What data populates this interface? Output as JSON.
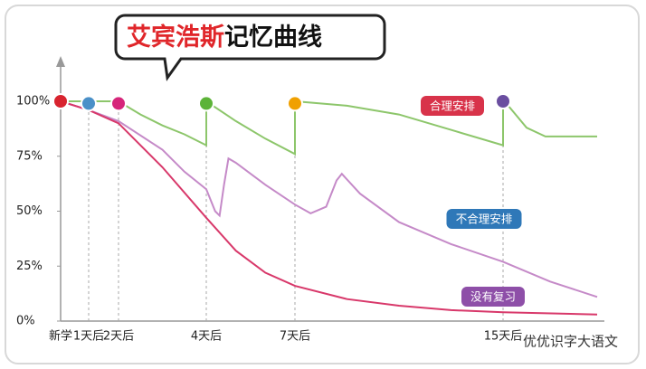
{
  "chart_data": {
    "type": "line",
    "title_part1": "艾宾浩斯",
    "title_part2": "记忆曲线",
    "xlim": [
      0,
      19
    ],
    "xticks": [
      {
        "value": 0,
        "label": "新学"
      },
      {
        "value": 1,
        "label": "1天后"
      },
      {
        "value": 2,
        "label": "2天后"
      },
      {
        "value": 4,
        "label": "4天后"
      },
      {
        "value": 7,
        "label": "7天后"
      },
      {
        "value": 15,
        "label": "15天后"
      }
    ],
    "ylim": [
      0,
      100
    ],
    "yticks": [
      {
        "value": 0,
        "label": "0%"
      },
      {
        "value": 25,
        "label": "25%"
      },
      {
        "value": 50,
        "label": "50%"
      },
      {
        "value": 75,
        "label": "75%"
      },
      {
        "value": 100,
        "label": "100%"
      }
    ],
    "series": [
      {
        "name": "合理安排",
        "color": "#8dc66b",
        "label_color": "#d8334a",
        "x": [
          0,
          1,
          2,
          2.5,
          3,
          3.5,
          4,
          4,
          5,
          6,
          7,
          7,
          9,
          11,
          13,
          15,
          15,
          15.3,
          16,
          16.8,
          19
        ],
        "values": [
          100,
          100,
          100,
          94,
          89,
          85,
          80,
          100,
          91,
          83,
          76,
          100,
          98,
          94,
          87,
          80,
          100,
          97,
          88,
          84,
          84
        ]
      },
      {
        "name": "不合理安排",
        "color": "#c58ac8",
        "label_color": "#2f78b8",
        "x": [
          0,
          1,
          2,
          3,
          3.5,
          4,
          4.3,
          4.45,
          4.6,
          4.75,
          5,
          6,
          7,
          7.6,
          8.2,
          8.6,
          8.8,
          9.5,
          11,
          13,
          15,
          17,
          19
        ],
        "values": [
          100,
          96,
          91,
          78,
          68,
          60,
          50,
          48,
          62,
          74,
          72,
          62,
          53,
          49,
          52,
          64,
          67,
          58,
          45,
          35,
          27,
          18,
          11
        ]
      },
      {
        "name": "没有复习",
        "color": "#d8386a",
        "label_color": "#8e4fa8",
        "x": [
          0,
          1,
          2,
          3,
          4,
          5,
          6,
          7,
          9,
          11,
          13,
          15,
          19
        ],
        "values": [
          100,
          96,
          90,
          70,
          47,
          32,
          22,
          16,
          10,
          7,
          5,
          4,
          3
        ]
      }
    ],
    "markers": {
      "x": [
        0,
        1,
        2,
        4,
        7,
        15
      ],
      "values": [
        100,
        99,
        99,
        99,
        99,
        100
      ],
      "colors": [
        "#d8242f",
        "#4a90c8",
        "#d6267a",
        "#5cb338",
        "#f0a000",
        "#6a4ea0"
      ]
    },
    "watermark": "优优识字大语文"
  }
}
